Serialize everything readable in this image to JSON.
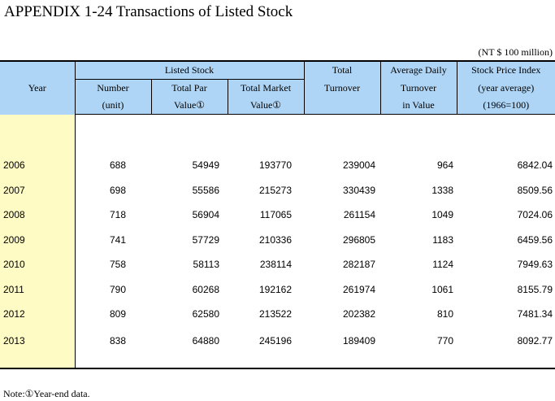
{
  "title": "APPENDIX 1-24  Transactions of Listed Stock",
  "unit": "(NT $ 100 million)",
  "headers": {
    "year": "Year",
    "listed_stock": "Listed Stock",
    "number_1": "Number",
    "number_2": "(unit)",
    "total_par_1": "Total Par",
    "total_par_2": "Value①",
    "total_market_1": "Total Market",
    "total_market_2": "Value①",
    "total_turnover_1": "Total",
    "total_turnover_2": "Turnover",
    "avg_daily_1": "Average Daily",
    "avg_daily_2": "Turnover",
    "avg_daily_3": "in Value",
    "spi_1": "Stock Price Index",
    "spi_2": "(year average)",
    "spi_3": "(1966=100)"
  },
  "rows": [
    {
      "year": "2006",
      "number": "688",
      "par": "54949",
      "market": "193770",
      "turnover": "239004",
      "daily": "964",
      "index": "6842.04"
    },
    {
      "year": "2007",
      "number": "698",
      "par": "55586",
      "market": "215273",
      "turnover": "330439",
      "daily": "1338",
      "index": "8509.56"
    },
    {
      "year": "2008",
      "number": "718",
      "par": "56904",
      "market": "117065",
      "turnover": "261154",
      "daily": "1049",
      "index": "7024.06"
    },
    {
      "year": "2009",
      "number": "741",
      "par": "57729",
      "market": "210336",
      "turnover": "296805",
      "daily": "1183",
      "index": "6459.56"
    },
    {
      "year": "2010",
      "number": "758",
      "par": "58113",
      "market": "238114",
      "turnover": "282187",
      "daily": "1124",
      "index": "7949.63"
    },
    {
      "year": "2011",
      "number": "790",
      "par": "60268",
      "market": "192162",
      "turnover": "261974",
      "daily": "1061",
      "index": "8155.79"
    },
    {
      "year": "2012",
      "number": "809",
      "par": "62580",
      "market": "213522",
      "turnover": "202382",
      "daily": "810",
      "index": "7481.34"
    },
    {
      "year": "2013",
      "number": "838",
      "par": "64880",
      "market": "245196",
      "turnover": "189409",
      "daily": "770",
      "index": "8092.77"
    }
  ],
  "note": "Note:①Year-end data.",
  "colors": {
    "header_bg": "#aed5f5",
    "year_col_bg": "#fffbc5"
  }
}
